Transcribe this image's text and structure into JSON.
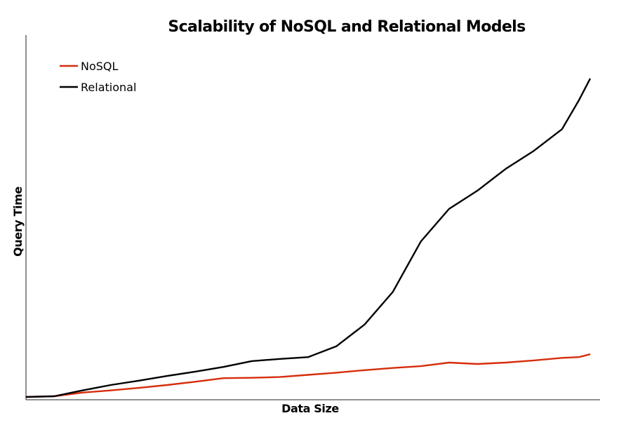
{
  "chart_data": {
    "type": "line",
    "title": "Scalability of NoSQL and Relational Models",
    "xlabel": "Data Size",
    "ylabel": "Query Time",
    "grid": false,
    "legend_position": "top-left",
    "xlim": [
      0,
      100
    ],
    "ylim": [
      0,
      100
    ],
    "x": [
      0,
      5,
      10,
      15,
      20,
      25,
      30,
      35,
      40,
      45,
      50,
      55,
      60,
      65,
      70,
      75,
      80,
      85,
      90,
      95,
      98,
      100
    ],
    "series": [
      {
        "name": "NoSQL",
        "color": "#d62d0c",
        "values": [
          0,
          0.2,
          1.2,
          1.8,
          2.5,
          3.3,
          4.2,
          5.2,
          5.3,
          5.5,
          6.1,
          6.7,
          7.4,
          8.0,
          8.5,
          9.5,
          9.1,
          9.5,
          10.1,
          10.8,
          11.0,
          11.8
        ]
      },
      {
        "name": "Relational",
        "color": "#000000",
        "values": [
          0,
          0.2,
          1.8,
          3.3,
          4.5,
          5.8,
          7.0,
          8.3,
          9.9,
          10.5,
          11.0,
          14.0,
          20.0,
          29.0,
          43.0,
          52.0,
          57.0,
          63.0,
          68.0,
          74.0,
          82.0,
          88.0
        ]
      }
    ]
  }
}
